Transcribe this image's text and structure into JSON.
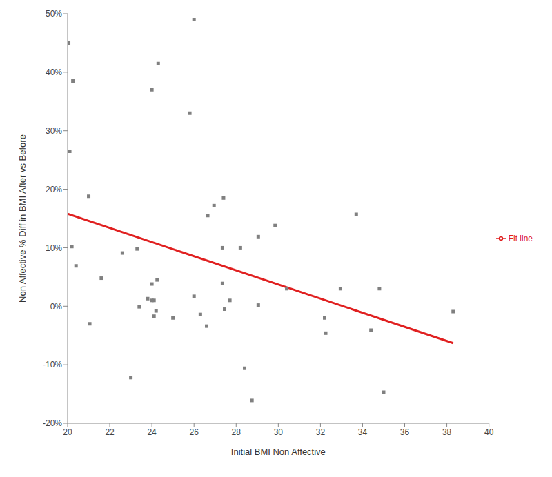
{
  "chart_data": {
    "type": "scatter",
    "x_label": "Initial BMI Non Affective",
    "y_label": "Non Affective % Diff in BMI After  vs Before",
    "xlim": [
      20,
      40
    ],
    "xticks": [
      20,
      22,
      24,
      26,
      28,
      30,
      32,
      34,
      36,
      38,
      40
    ],
    "ylim": [
      -20,
      50
    ],
    "yticks": [
      {
        "value": -20,
        "label": "-20%"
      },
      {
        "value": -10,
        "label": "-10%"
      },
      {
        "value": 0,
        "label": "0%"
      },
      {
        "value": 10,
        "label": "10%"
      },
      {
        "value": 20,
        "label": "20%"
      },
      {
        "value": 30,
        "label": "30%"
      },
      {
        "value": 40,
        "label": "40%"
      },
      {
        "value": 50,
        "label": "50%"
      }
    ],
    "grid": false,
    "legend": "right",
    "series": [
      {
        "type": "scatter",
        "color": "#808080",
        "marker": "square",
        "x": [
          20.05,
          20.1,
          20.25,
          20.2,
          20.4,
          21.0,
          21.05,
          21.6,
          22.6,
          23.0,
          23.3,
          23.4,
          23.8,
          24.0,
          24.0,
          24.0,
          24.1,
          24.1,
          24.2,
          24.25,
          24.3,
          25.0,
          25.8,
          26.0,
          26.0,
          26.3,
          26.6,
          26.65,
          26.95,
          27.35,
          27.35,
          27.4,
          27.45,
          27.7,
          28.2,
          28.4,
          28.75,
          29.05,
          29.05,
          29.85,
          30.4,
          32.2,
          32.25,
          32.95,
          33.7,
          34.4,
          34.8,
          35.0,
          38.3
        ],
        "values": [
          45,
          26.5,
          38.5,
          10.2,
          6.9,
          18.8,
          -3,
          4.8,
          9.1,
          -12.2,
          9.8,
          -0.1,
          1.3,
          37,
          1.0,
          3.8,
          -1.7,
          1.0,
          -0.8,
          4.5,
          41.5,
          -2.0,
          33,
          49,
          1.7,
          -1.4,
          -3.4,
          15.5,
          17.2,
          10,
          3.9,
          18.5,
          -0.5,
          1.0,
          10,
          -10.6,
          -16.1,
          11.9,
          0.2,
          13.8,
          3.0,
          -2.0,
          -4.6,
          3.0,
          15.7,
          -4.1,
          3.0,
          -14.7,
          -0.9
        ]
      },
      {
        "name": "Fit line",
        "type": "line",
        "color": "#e02020",
        "line_style": "solid",
        "x": [
          20,
          38.3
        ],
        "values": [
          15.8,
          -6.3
        ]
      }
    ]
  }
}
